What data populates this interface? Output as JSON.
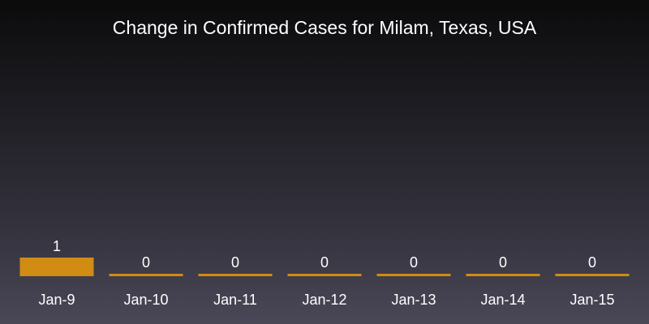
{
  "chart_data": {
    "type": "bar",
    "title": "Change in Confirmed Cases for Milam, Texas, USA",
    "categories": [
      "Jan-9",
      "Jan-10",
      "Jan-11",
      "Jan-12",
      "Jan-13",
      "Jan-14",
      "Jan-15"
    ],
    "values": [
      1,
      0,
      0,
      0,
      0,
      0,
      0
    ],
    "value_labels": [
      "1",
      "0",
      "0",
      "0",
      "0",
      "0",
      "0"
    ],
    "xlabel": "",
    "ylabel": "",
    "ylim": [
      0,
      1
    ],
    "grid": false,
    "legend": "none",
    "bar_color": "#d18c14",
    "text_color": "#ffffff"
  }
}
